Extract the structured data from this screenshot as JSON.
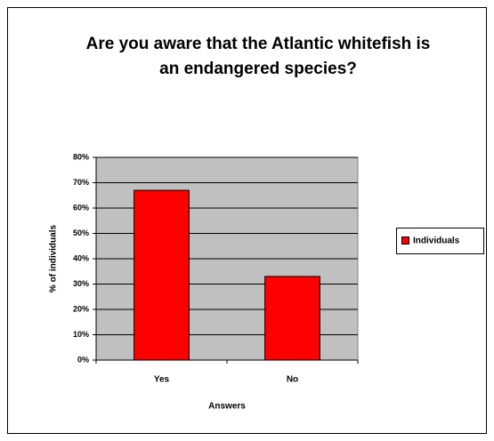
{
  "chart_data": {
    "type": "bar",
    "title": "Are you aware that the Atlantic whitefish is an endangered species?",
    "x_label": "Answers",
    "y_label": "% of individuals",
    "categories": [
      "Yes",
      "No"
    ],
    "series": [
      {
        "name": "Individuals",
        "color": "#ff0000",
        "values": [
          67,
          33
        ]
      }
    ],
    "ylim": [
      0,
      80
    ],
    "yticks": [
      {
        "value": 0,
        "label": "0%"
      },
      {
        "value": 10,
        "label": "10%"
      },
      {
        "value": 20,
        "label": "20%"
      },
      {
        "value": 30,
        "label": "30%"
      },
      {
        "value": 40,
        "label": "40%"
      },
      {
        "value": 50,
        "label": "50%"
      },
      {
        "value": 60,
        "label": "60%"
      },
      {
        "value": 70,
        "label": "70%"
      },
      {
        "value": 80,
        "label": "80%"
      }
    ],
    "grid": true,
    "legend": "right"
  }
}
